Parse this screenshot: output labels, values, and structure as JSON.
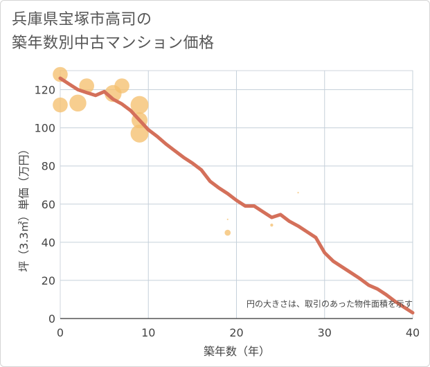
{
  "title_line1": "兵庫県宝塚市高司の",
  "title_line2": "築年数別中古マンション価格",
  "chart_data": {
    "type": "scatter",
    "title": "兵庫県宝塚市高司の築年数別中古マンション価格",
    "xlabel": "築年数（年）",
    "ylabel": "坪（3.3㎡）単価（万円）",
    "xlim": [
      0,
      40
    ],
    "ylim": [
      0,
      130
    ],
    "xticks": [
      0,
      10,
      20,
      30,
      40
    ],
    "yticks": [
      0,
      20,
      40,
      60,
      80,
      100,
      120
    ],
    "grid": true,
    "note": "円の大きさは、取引のあった物件面積を示す",
    "bubble_color": "#f5c070",
    "line_color": "#d4705a",
    "bubbles": [
      {
        "x": 0,
        "y": 128,
        "size": 3
      },
      {
        "x": 0,
        "y": 112,
        "size": 3
      },
      {
        "x": 2,
        "y": 113,
        "size": 3.4
      },
      {
        "x": 3,
        "y": 122,
        "size": 3
      },
      {
        "x": 6,
        "y": 118,
        "size": 3.4
      },
      {
        "x": 7,
        "y": 122,
        "size": 3
      },
      {
        "x": 9,
        "y": 112,
        "size": 3.6
      },
      {
        "x": 9,
        "y": 104,
        "size": 3.2
      },
      {
        "x": 9,
        "y": 97,
        "size": 3.6
      },
      {
        "x": 19,
        "y": 45,
        "size": 1.2
      },
      {
        "x": 19,
        "y": 52,
        "size": 0.3
      },
      {
        "x": 24,
        "y": 49,
        "size": 0.6
      },
      {
        "x": 27,
        "y": 66,
        "size": 0.3
      }
    ],
    "trend": {
      "x": [
        0,
        1,
        2,
        3,
        4,
        5,
        6,
        7,
        8,
        9,
        10,
        11,
        12,
        13,
        14,
        15,
        16,
        17,
        18,
        19,
        20,
        21,
        22,
        23,
        24,
        25,
        26,
        27,
        28,
        29,
        30,
        31,
        32,
        33,
        34,
        35,
        36,
        37,
        38,
        39,
        40
      ],
      "y": [
        126,
        123,
        120,
        118.5,
        117,
        119,
        115,
        112.5,
        109,
        104,
        99,
        95.5,
        91.5,
        88,
        84.5,
        81.5,
        78,
        72,
        68.5,
        65.5,
        62,
        59,
        59,
        56,
        53,
        54.5,
        51,
        48.5,
        45.5,
        42.5,
        34.5,
        30,
        27,
        24,
        21,
        17.5,
        15.5,
        12.5,
        9,
        6,
        3
      ]
    }
  }
}
